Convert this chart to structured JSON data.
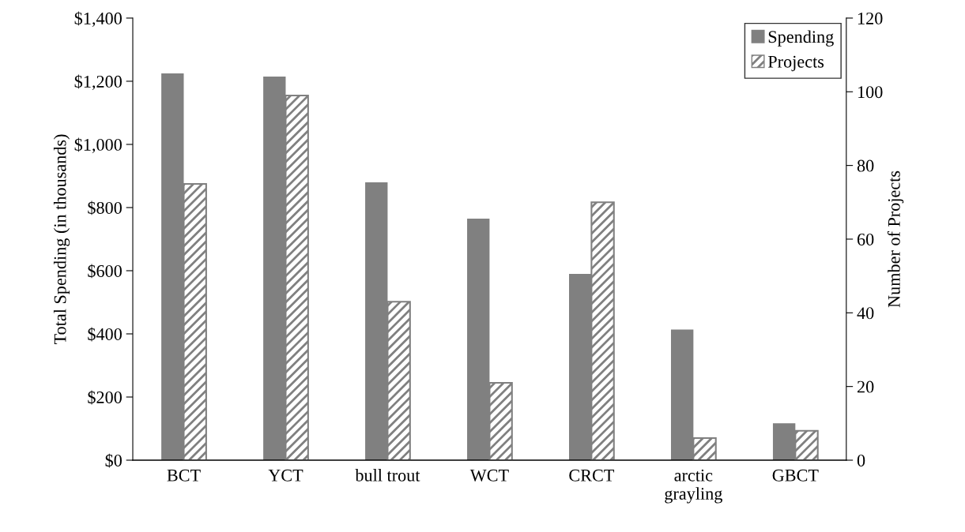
{
  "chart_data": {
    "type": "bar",
    "categories": [
      "BCT",
      "YCT",
      "bull trout",
      "WCT",
      "CRCT",
      "arctic\ngrayling",
      "GBCT"
    ],
    "series": [
      {
        "name": "Spending",
        "color": "#808080",
        "values": [
          1225,
          1215,
          880,
          765,
          590,
          414,
          117
        ]
      },
      {
        "name": "Projects",
        "color": "#808080",
        "axis": "y2",
        "values": [
          75,
          99,
          43,
          21,
          70,
          6,
          8
        ]
      }
    ],
    "ylabel": "Total Spending (in thousands)",
    "y2label": "Number of Projects",
    "ylim": [
      0,
      1400
    ],
    "yticks": [
      {
        "value": 0,
        "label": "$0"
      },
      {
        "value": 200,
        "label": "$200"
      },
      {
        "value": 400,
        "label": "$400"
      },
      {
        "value": 600,
        "label": "$600"
      },
      {
        "value": 800,
        "label": "$800"
      },
      {
        "value": 1000,
        "label": "$1,000"
      },
      {
        "value": 1200,
        "label": "$1,200"
      },
      {
        "value": 1400,
        "label": "$1,400"
      }
    ],
    "y2lim": [
      0,
      120
    ],
    "y2ticks": [
      0,
      20,
      40,
      60,
      80,
      100,
      120
    ],
    "legend": "top right",
    "grid": false
  }
}
